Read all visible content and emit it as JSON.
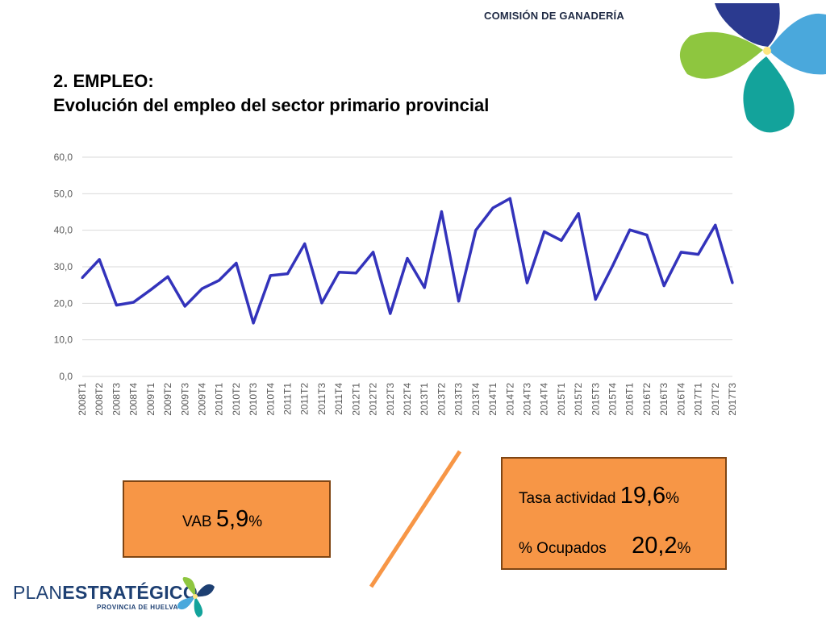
{
  "header": {
    "organization": "COMISIÓN DE GANADERÍA"
  },
  "title": {
    "line1": "2. EMPLEO:",
    "line2": "Evolución del empleo del sector primario provincial"
  },
  "chart_data": {
    "type": "line",
    "title": "",
    "xlabel": "",
    "ylabel": "",
    "ylim": [
      0,
      60
    ],
    "yticks": [
      "0,0",
      "10,0",
      "20,0",
      "30,0",
      "40,0",
      "50,0",
      "60,0"
    ],
    "grid": true,
    "legend": "none",
    "categories": [
      "2008T1",
      "2008T2",
      "2008T3",
      "2008T4",
      "2009T1",
      "2009T2",
      "2009T3",
      "2009T4",
      "2010T1",
      "2010T2",
      "2010T3",
      "2010T4",
      "2011T1",
      "2011T2",
      "2011T3",
      "2011T4",
      "2012T1",
      "2012T2",
      "2012T3",
      "2012T4",
      "2013T1",
      "2013T2",
      "2013T3",
      "2013T4",
      "2014T1",
      "2014T2",
      "2014T3",
      "2014T4",
      "2015T1",
      "2015T2",
      "2015T3",
      "2015T4",
      "2016T1",
      "2016T2",
      "2016T3",
      "2016T4",
      "2017T1",
      "2017T2",
      "2017T3"
    ],
    "series": [
      {
        "color": "#3333bb",
        "values": [
          27.0,
          32.0,
          19.5,
          20.3,
          23.7,
          27.3,
          19.2,
          24.0,
          26.3,
          31.0,
          14.6,
          27.6,
          28.1,
          36.3,
          20.1,
          28.5,
          28.3,
          34.0,
          17.2,
          32.3,
          24.3,
          45.1,
          20.6,
          40.0,
          46.1,
          48.7,
          25.6,
          39.6,
          37.2,
          44.6,
          21.1,
          30.3,
          40.1,
          38.7,
          24.8,
          34.0,
          33.4,
          41.4,
          25.6
        ]
      }
    ]
  },
  "vab": {
    "label": "VAB",
    "value": "5,9",
    "unit": "%"
  },
  "rates": {
    "activity_label": "Tasa actividad",
    "activity_value": "19,6",
    "activity_unit": "%",
    "employed_label": "% Ocupados",
    "employed_value": "20,2",
    "employed_unit": "%"
  },
  "logo": {
    "plan": "PLAN",
    "estrategico": "ESTRATÉGICO",
    "subtitle": "PROVINCIA DE HUELVA"
  },
  "colors": {
    "accent": "#f79646",
    "line": "#3333bb",
    "slash": "#f79646"
  }
}
